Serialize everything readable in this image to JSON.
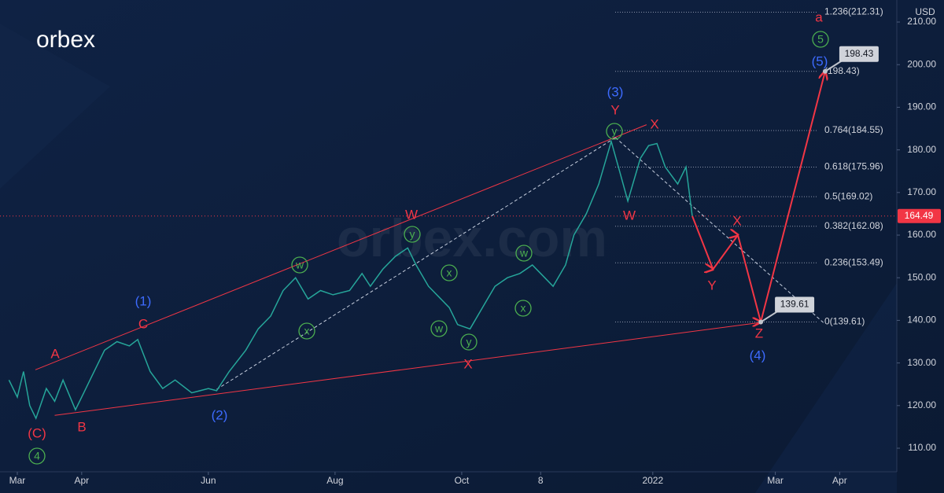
{
  "chart_data": {
    "type": "line",
    "logo": "orbex",
    "watermark": "orbex.com",
    "currency": "USD",
    "current_price": 164.49,
    "current_price_color": "#f23645",
    "xlim": [
      -8.33,
      423.5
    ],
    "ylim": [
      104.47,
      215.17
    ],
    "xticks": [
      {
        "value": 0,
        "label": "Mar"
      },
      {
        "value": 31,
        "label": "Apr"
      },
      {
        "value": 92,
        "label": "Jun"
      },
      {
        "value": 153,
        "label": "Aug"
      },
      {
        "value": 214,
        "label": "Oct"
      },
      {
        "value": 252,
        "label": "8"
      },
      {
        "value": 306,
        "label": "2022"
      },
      {
        "value": 365,
        "label": "Mar"
      },
      {
        "value": 396,
        "label": "Apr"
      }
    ],
    "yticks": [
      {
        "value": 110,
        "label": "110.00"
      },
      {
        "value": 120,
        "label": "120.00"
      },
      {
        "value": 130,
        "label": "130.00"
      },
      {
        "value": 140,
        "label": "140.00"
      },
      {
        "value": 150,
        "label": "150.00"
      },
      {
        "value": 160,
        "label": "160.00"
      },
      {
        "value": 170,
        "label": "170.00"
      },
      {
        "value": 180,
        "label": "180.00"
      },
      {
        "value": 190,
        "label": "190.00"
      },
      {
        "value": 200,
        "label": "200.00"
      },
      {
        "value": 210,
        "label": "210.00"
      }
    ],
    "series": [
      {
        "color": "#26a69a",
        "x": [
          -4,
          0,
          3,
          6,
          9,
          14,
          18,
          22,
          28,
          32,
          36,
          42,
          48,
          54,
          58,
          64,
          70,
          76,
          84,
          92,
          96,
          102,
          110,
          116,
          122,
          128,
          134,
          140,
          146,
          152,
          160,
          166,
          170,
          176,
          182,
          188,
          192,
          198,
          204,
          208,
          212,
          218,
          224,
          230,
          236,
          242,
          248,
          254,
          258,
          264,
          268,
          274,
          280,
          286,
          290,
          294,
          300,
          304,
          308,
          312,
          318,
          322,
          325
        ],
        "values": [
          126,
          122,
          128,
          120,
          117,
          124,
          121,
          126,
          119,
          123,
          127,
          133,
          135,
          134,
          135.5,
          128,
          124,
          126,
          123,
          124,
          123.5,
          128,
          133,
          138,
          141,
          147,
          150,
          145,
          147,
          146,
          147,
          151,
          148,
          152,
          155,
          157,
          153,
          148,
          145,
          143,
          139,
          138,
          143,
          148,
          150,
          151,
          153,
          150,
          148,
          153,
          160,
          165,
          172,
          182,
          175,
          168,
          178,
          181,
          181.5,
          176,
          172,
          176,
          164.49
        ]
      },
      {
        "color": "#f23645",
        "x": [
          325,
          335,
          347,
          358,
          389
        ],
        "values": [
          164.49,
          152,
          160,
          139.61,
          198.43
        ]
      }
    ],
    "trend_lines": [
      {
        "color": "#f23645",
        "style": "solid",
        "x": [
          8.7,
          303
        ],
        "values": [
          128.4,
          185.9
        ]
      },
      {
        "color": "#f23645",
        "style": "solid",
        "x": [
          18,
          358
        ],
        "values": [
          117.7,
          139.5
        ]
      },
      {
        "color": "#c8d0e0",
        "style": "dashed",
        "x": [
          96,
          288
        ],
        "values": [
          123.8,
          182.9
        ]
      },
      {
        "color": "#c8d0e0",
        "style": "dashed",
        "x": [
          288,
          389
        ],
        "values": [
          182.9,
          139.1
        ]
      }
    ],
    "fib_levels": [
      {
        "label": "1.236(212.31)",
        "value": 212.31
      },
      {
        "label": "(198.43)",
        "value": 198.43
      },
      {
        "label": "0.764(184.55)",
        "value": 184.55
      },
      {
        "label": "0.618(175.96)",
        "value": 175.96
      },
      {
        "label": "0.5(169.02)",
        "value": 169.02
      },
      {
        "label": "0.382(162.08)",
        "value": 162.08
      },
      {
        "label": "0.236(153.49)",
        "value": 153.49
      },
      {
        "label": "0(139.61)",
        "value": 139.61
      }
    ],
    "callouts": [
      {
        "x": 389,
        "value": 198.43
      },
      {
        "x": 358,
        "value": 139.61
      }
    ],
    "wave_labels": [
      {
        "text": "A",
        "color": "#f23645"
      },
      {
        "text": "B",
        "color": "#f23645"
      },
      {
        "text": "C",
        "color": "#f23645"
      },
      {
        "text": "(C)",
        "color": "#f23645"
      },
      {
        "text": "4",
        "color": "#4caf50",
        "circled": true
      },
      {
        "text": "(1)",
        "color": "#3d6bff"
      },
      {
        "text": "(2)",
        "color": "#3d6bff"
      },
      {
        "text": "w",
        "color": "#4caf50",
        "circled": true
      },
      {
        "text": "x",
        "color": "#4caf50",
        "circled": true
      },
      {
        "text": "y",
        "color": "#4caf50",
        "circled": true
      },
      {
        "text": "W",
        "color": "#f23645"
      },
      {
        "text": "x",
        "color": "#4caf50",
        "circled": true
      },
      {
        "text": "w",
        "color": "#4caf50",
        "circled": true
      },
      {
        "text": "y",
        "color": "#4caf50",
        "circled": true
      },
      {
        "text": "X",
        "color": "#f23645"
      },
      {
        "text": "w",
        "color": "#4caf50",
        "circled": true
      },
      {
        "text": "x",
        "color": "#4caf50",
        "circled": true
      },
      {
        "text": "(3)",
        "color": "#3d6bff"
      },
      {
        "text": "Y",
        "color": "#f23645"
      },
      {
        "text": "y",
        "color": "#4caf50",
        "circled": true
      },
      {
        "text": "X",
        "color": "#f23645"
      },
      {
        "text": "W",
        "color": "#f23645"
      },
      {
        "text": "X",
        "color": "#f23645"
      },
      {
        "text": "Y",
        "color": "#f23645"
      },
      {
        "text": "Z",
        "color": "#f23645"
      },
      {
        "text": "(4)",
        "color": "#3d6bff"
      },
      {
        "text": "a",
        "color": "#f23645"
      },
      {
        "text": "5",
        "color": "#4caf50",
        "circled": true
      },
      {
        "text": "(5)",
        "color": "#3d6bff"
      }
    ]
  }
}
